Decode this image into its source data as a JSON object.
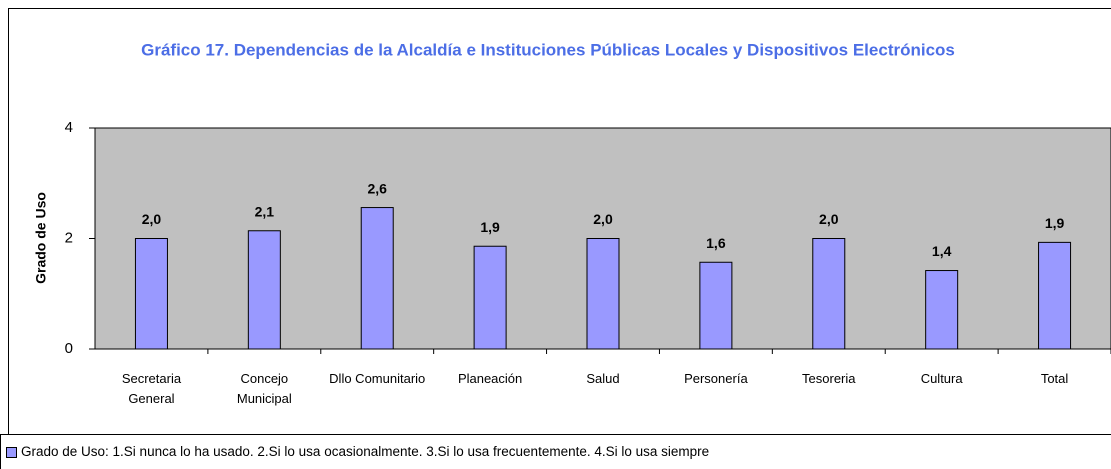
{
  "chart_data": {
    "type": "bar",
    "title": "Gráfico 17. Dependencias de la Alcaldía e Instituciones Públicas Locales y Dispositivos Electrónicos",
    "y_label": "Grado de Uso",
    "categories": [
      "Secretaria General",
      "Concejo Municipal",
      "Dllo Comunitario",
      "Planeación",
      "Salud",
      "Personería",
      "Tesoreria",
      "Cultura",
      "Total"
    ],
    "series": [
      {
        "name": "Grado de Uso: 1.Si nunca lo ha usado. 2.Si lo usa ocasionalmente. 3.Si lo usa frecuentemente. 4.Si lo usa siempre",
        "color": "#9999ff",
        "values": [
          2.0,
          2.14,
          2.56,
          1.86,
          2.0,
          1.57,
          2.0,
          1.42,
          1.93
        ],
        "value_labels": [
          "2,0",
          "2,1",
          "2,6",
          "1,9",
          "2,0",
          "1,6",
          "2,0",
          "1,4",
          "1,9"
        ]
      }
    ],
    "ylim": [
      0,
      4
    ],
    "yticks": [
      0,
      2,
      4
    ],
    "grid": false,
    "legend": "bottom",
    "plot_background": "#c0c0c0"
  }
}
